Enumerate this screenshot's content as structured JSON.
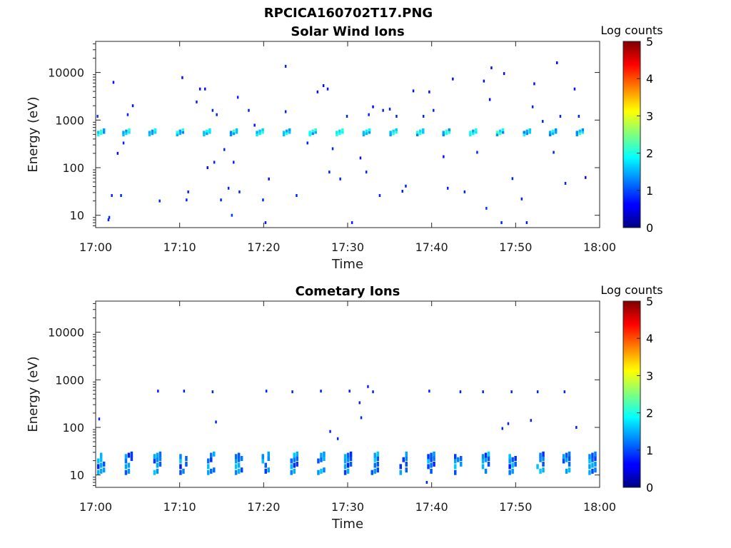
{
  "figure_title": "RPCICA160702T17.PNG",
  "chart_data": [
    {
      "type": "heatmap",
      "title": "Solar Wind Ions",
      "xlabel": "Time",
      "ylabel": "Energy (eV)",
      "x_ticks": [
        "17:00",
        "17:10",
        "17:20",
        "17:30",
        "17:40",
        "17:50",
        "18:00"
      ],
      "y_ticks": [
        "10",
        "100",
        "1000",
        "10000"
      ],
      "y_scale": "log",
      "ylim": [
        5.5,
        45000
      ],
      "xlim": [
        "17:00",
        "18:00"
      ],
      "colorbar": {
        "label": "Log counts",
        "range": [
          0,
          5
        ],
        "ticks": [
          "0",
          "1",
          "2",
          "3",
          "4",
          "5"
        ],
        "colormap": "jet"
      },
      "scans": {
        "times_min": [
          0.5,
          3.5,
          6.6,
          9.9,
          13.1,
          16.3,
          19.4,
          22.6,
          25.7,
          28.9,
          32.1,
          35.3,
          38.5,
          41.6,
          44.8,
          48.0,
          51.2,
          54.3,
          57.5
        ],
        "band_energies_eV": [
          520,
          590
        ],
        "band_level": 1.7
      },
      "points": [
        {
          "t": 0.2,
          "e": 1200,
          "v": 0.9
        },
        {
          "t": 1.5,
          "e": 8,
          "v": 0.8
        },
        {
          "t": 1.6,
          "e": 9,
          "v": 0.8
        },
        {
          "t": 1.9,
          "e": 26,
          "v": 0.8
        },
        {
          "t": 2.1,
          "e": 6200,
          "v": 0.7
        },
        {
          "t": 2.6,
          "e": 200,
          "v": 0.7
        },
        {
          "t": 3.0,
          "e": 26,
          "v": 0.8
        },
        {
          "t": 3.3,
          "e": 330,
          "v": 0.8
        },
        {
          "t": 3.8,
          "e": 1300,
          "v": 0.8
        },
        {
          "t": 4.4,
          "e": 2000,
          "v": 0.7
        },
        {
          "t": 7.6,
          "e": 20,
          "v": 0.8
        },
        {
          "t": 10.3,
          "e": 7800,
          "v": 0.7
        },
        {
          "t": 10.8,
          "e": 21,
          "v": 0.8
        },
        {
          "t": 11.0,
          "e": 31,
          "v": 0.8
        },
        {
          "t": 12.0,
          "e": 2400,
          "v": 0.8
        },
        {
          "t": 12.4,
          "e": 4500,
          "v": 0.7
        },
        {
          "t": 13.0,
          "e": 4500,
          "v": 0.7
        },
        {
          "t": 13.3,
          "e": 100,
          "v": 0.7
        },
        {
          "t": 13.9,
          "e": 1600,
          "v": 0.8
        },
        {
          "t": 14.1,
          "e": 130,
          "v": 0.8
        },
        {
          "t": 14.4,
          "e": 1300,
          "v": 0.8
        },
        {
          "t": 14.9,
          "e": 21,
          "v": 0.8
        },
        {
          "t": 15.3,
          "e": 240,
          "v": 0.8
        },
        {
          "t": 15.8,
          "e": 37,
          "v": 0.8
        },
        {
          "t": 16.2,
          "e": 10,
          "v": 0.9
        },
        {
          "t": 16.4,
          "e": 130,
          "v": 0.8
        },
        {
          "t": 16.9,
          "e": 3000,
          "v": 0.8
        },
        {
          "t": 17.1,
          "e": 31,
          "v": 0.8
        },
        {
          "t": 18.2,
          "e": 1600,
          "v": 0.8
        },
        {
          "t": 18.9,
          "e": 780,
          "v": 0.7
        },
        {
          "t": 19.9,
          "e": 21,
          "v": 0.8
        },
        {
          "t": 20.2,
          "e": 7,
          "v": 0.8
        },
        {
          "t": 20.6,
          "e": 58,
          "v": 0.7
        },
        {
          "t": 22.6,
          "e": 13500,
          "v": 0.8
        },
        {
          "t": 22.6,
          "e": 1500,
          "v": 0.8
        },
        {
          "t": 23.9,
          "e": 26,
          "v": 0.8
        },
        {
          "t": 25.2,
          "e": 330,
          "v": 0.8
        },
        {
          "t": 26.4,
          "e": 3900,
          "v": 0.7
        },
        {
          "t": 27.1,
          "e": 5300,
          "v": 0.7
        },
        {
          "t": 27.6,
          "e": 4500,
          "v": 0.7
        },
        {
          "t": 27.8,
          "e": 81,
          "v": 0.8
        },
        {
          "t": 28.2,
          "e": 250,
          "v": 0.8
        },
        {
          "t": 29.1,
          "e": 58,
          "v": 0.8
        },
        {
          "t": 29.9,
          "e": 1200,
          "v": 0.8
        },
        {
          "t": 30.5,
          "e": 7,
          "v": 0.8
        },
        {
          "t": 31.5,
          "e": 160,
          "v": 0.7
        },
        {
          "t": 32.2,
          "e": 81,
          "v": 0.8
        },
        {
          "t": 32.5,
          "e": 1300,
          "v": 0.8
        },
        {
          "t": 33.0,
          "e": 1900,
          "v": 0.7
        },
        {
          "t": 33.8,
          "e": 26,
          "v": 0.8
        },
        {
          "t": 34.2,
          "e": 1600,
          "v": 0.8
        },
        {
          "t": 35.0,
          "e": 1700,
          "v": 0.8
        },
        {
          "t": 35.8,
          "e": 1200,
          "v": 0.8
        },
        {
          "t": 36.5,
          "e": 32,
          "v": 0.8
        },
        {
          "t": 36.9,
          "e": 41,
          "v": 0.8
        },
        {
          "t": 37.8,
          "e": 4100,
          "v": 0.7
        },
        {
          "t": 39.0,
          "e": 1200,
          "v": 0.8
        },
        {
          "t": 39.7,
          "e": 3900,
          "v": 0.7
        },
        {
          "t": 40.2,
          "e": 1600,
          "v": 0.8
        },
        {
          "t": 41.4,
          "e": 170,
          "v": 0.7
        },
        {
          "t": 41.9,
          "e": 37,
          "v": 0.8
        },
        {
          "t": 42.5,
          "e": 7300,
          "v": 0.7
        },
        {
          "t": 43.9,
          "e": 31,
          "v": 0.8
        },
        {
          "t": 45.4,
          "e": 210,
          "v": 0.8
        },
        {
          "t": 46.2,
          "e": 6600,
          "v": 0.7
        },
        {
          "t": 46.5,
          "e": 14,
          "v": 0.9
        },
        {
          "t": 46.9,
          "e": 2700,
          "v": 0.7
        },
        {
          "t": 47.1,
          "e": 12500,
          "v": 0.7
        },
        {
          "t": 48.3,
          "e": 7,
          "v": 0.8
        },
        {
          "t": 48.6,
          "e": 9500,
          "v": 0.7
        },
        {
          "t": 49.6,
          "e": 59,
          "v": 0.8
        },
        {
          "t": 50.7,
          "e": 22,
          "v": 0.8
        },
        {
          "t": 51.3,
          "e": 7,
          "v": 0.8
        },
        {
          "t": 52.0,
          "e": 1900,
          "v": 0.8
        },
        {
          "t": 52.2,
          "e": 5800,
          "v": 0.7
        },
        {
          "t": 53.2,
          "e": 940,
          "v": 0.8
        },
        {
          "t": 54.5,
          "e": 210,
          "v": 0.8
        },
        {
          "t": 54.9,
          "e": 16000,
          "v": 0.7
        },
        {
          "t": 55.3,
          "e": 1200,
          "v": 0.8
        },
        {
          "t": 55.9,
          "e": 47,
          "v": 0.8
        },
        {
          "t": 57.0,
          "e": 4500,
          "v": 0.7
        },
        {
          "t": 57.5,
          "e": 1200,
          "v": 0.8
        },
        {
          "t": 58.3,
          "e": 62,
          "v": 0.7
        }
      ]
    },
    {
      "type": "heatmap",
      "title": "Cometary Ions",
      "xlabel": "Time",
      "ylabel": "Energy (eV)",
      "x_ticks": [
        "17:00",
        "17:10",
        "17:20",
        "17:30",
        "17:40",
        "17:50",
        "18:00"
      ],
      "y_ticks": [
        "10",
        "100",
        "1000",
        "10000"
      ],
      "y_scale": "log",
      "ylim": [
        5.5,
        45000
      ],
      "xlim": [
        "17:00",
        "18:00"
      ],
      "colorbar": {
        "label": "Log counts",
        "range": [
          0,
          5
        ],
        "ticks": [
          "0",
          "1",
          "2",
          "3",
          "4",
          "5"
        ],
        "colormap": "jet"
      },
      "scans": {
        "times_min": [
          0.5,
          3.8,
          7.2,
          10.3,
          13.6,
          16.9,
          20.1,
          23.5,
          26.7,
          29.9,
          33.1,
          36.5,
          39.8,
          43.0,
          46.3,
          49.5,
          52.8,
          55.9,
          59.0
        ],
        "band_energies_eV": [
          12,
          16,
          21,
          26
        ],
        "band_level": 1.2
      },
      "points": [
        {
          "t": 0.4,
          "e": 150,
          "v": 0.8
        },
        {
          "t": 7.4,
          "e": 580,
          "v": 0.8
        },
        {
          "t": 10.5,
          "e": 580,
          "v": 0.8
        },
        {
          "t": 13.9,
          "e": 560,
          "v": 0.8
        },
        {
          "t": 14.3,
          "e": 130,
          "v": 0.8
        },
        {
          "t": 20.3,
          "e": 580,
          "v": 0.8
        },
        {
          "t": 23.4,
          "e": 560,
          "v": 0.8
        },
        {
          "t": 26.8,
          "e": 580,
          "v": 0.8
        },
        {
          "t": 27.9,
          "e": 82,
          "v": 0.8
        },
        {
          "t": 28.8,
          "e": 58,
          "v": 0.8
        },
        {
          "t": 30.2,
          "e": 580,
          "v": 0.8
        },
        {
          "t": 31.4,
          "e": 330,
          "v": 0.8
        },
        {
          "t": 31.6,
          "e": 160,
          "v": 0.8
        },
        {
          "t": 32.4,
          "e": 720,
          "v": 0.8
        },
        {
          "t": 33.0,
          "e": 560,
          "v": 0.8
        },
        {
          "t": 39.7,
          "e": 580,
          "v": 0.8
        },
        {
          "t": 39.4,
          "e": 7,
          "v": 0.8
        },
        {
          "t": 43.4,
          "e": 560,
          "v": 0.8
        },
        {
          "t": 46.1,
          "e": 560,
          "v": 0.8
        },
        {
          "t": 48.4,
          "e": 95,
          "v": 0.8
        },
        {
          "t": 49.1,
          "e": 120,
          "v": 0.8
        },
        {
          "t": 49.5,
          "e": 560,
          "v": 0.8
        },
        {
          "t": 51.8,
          "e": 140,
          "v": 0.8
        },
        {
          "t": 52.6,
          "e": 560,
          "v": 0.8
        },
        {
          "t": 55.8,
          "e": 560,
          "v": 0.8
        },
        {
          "t": 57.2,
          "e": 100,
          "v": 0.8
        }
      ]
    }
  ]
}
